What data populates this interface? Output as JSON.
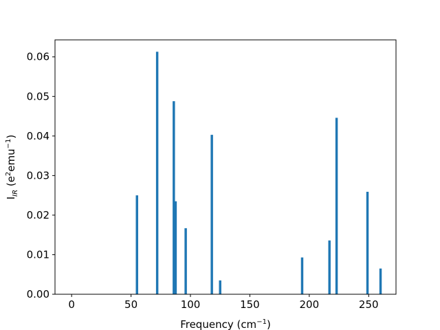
{
  "chart_data": {
    "type": "bar",
    "xlabel": "Frequency (cm⁻¹)",
    "ylabel": "I_IR (e²emu⁻¹)",
    "ylabel_parts": {
      "main": "I",
      "sub": "IR",
      "rest": " (e",
      "sup1": "2",
      "mid": "emu",
      "sup2": "−1",
      "end": ")"
    },
    "xlabel_parts": {
      "main": "Frequency (cm",
      "sup": "−1",
      "end": ")"
    },
    "xlim": [
      -14,
      273
    ],
    "ylim": [
      0,
      0.0643
    ],
    "xticks": [
      0,
      50,
      100,
      150,
      200,
      250
    ],
    "yticks": [
      0.0,
      0.01,
      0.02,
      0.03,
      0.04,
      0.05,
      0.06
    ],
    "ytick_labels": [
      "0.00",
      "0.01",
      "0.02",
      "0.03",
      "0.04",
      "0.05",
      "0.06"
    ],
    "bar_width": 2,
    "color": "#1f77b4",
    "grid": false,
    "x": [
      0.5,
      55,
      72,
      86,
      87.5,
      96,
      118,
      125,
      194,
      217,
      223,
      249,
      260
    ],
    "values": [
      0.0,
      0.025,
      0.0613,
      0.0488,
      0.0235,
      0.0167,
      0.0403,
      0.0035,
      0.0093,
      0.0136,
      0.0446,
      0.0259,
      0.0065
    ]
  }
}
